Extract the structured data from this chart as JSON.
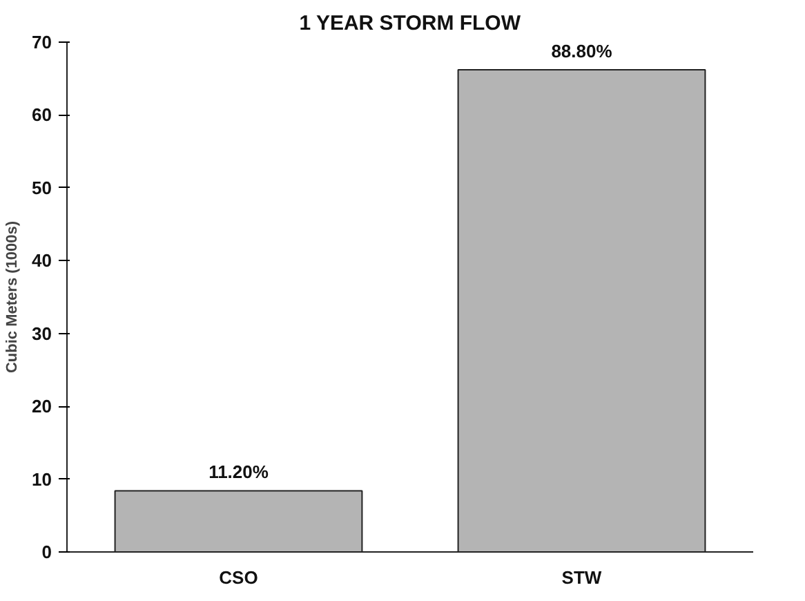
{
  "chart_data": {
    "type": "bar",
    "title": "1 YEAR STORM FLOW",
    "ylabel": "Cubic Meters (1000s)",
    "categories": [
      "CSO",
      "STW"
    ],
    "values": [
      8.4,
      66.2
    ],
    "annotations": [
      {
        "text": "11.20%",
        "x": "CSO",
        "y": 8.4
      },
      {
        "text": "88.80%",
        "x": "STW",
        "y": 66.2
      }
    ],
    "color": "#b4b4b4",
    "ylim": [
      0,
      70
    ],
    "yticks": [
      0,
      10,
      20,
      30,
      40,
      50,
      60,
      70
    ],
    "grid": false
  }
}
